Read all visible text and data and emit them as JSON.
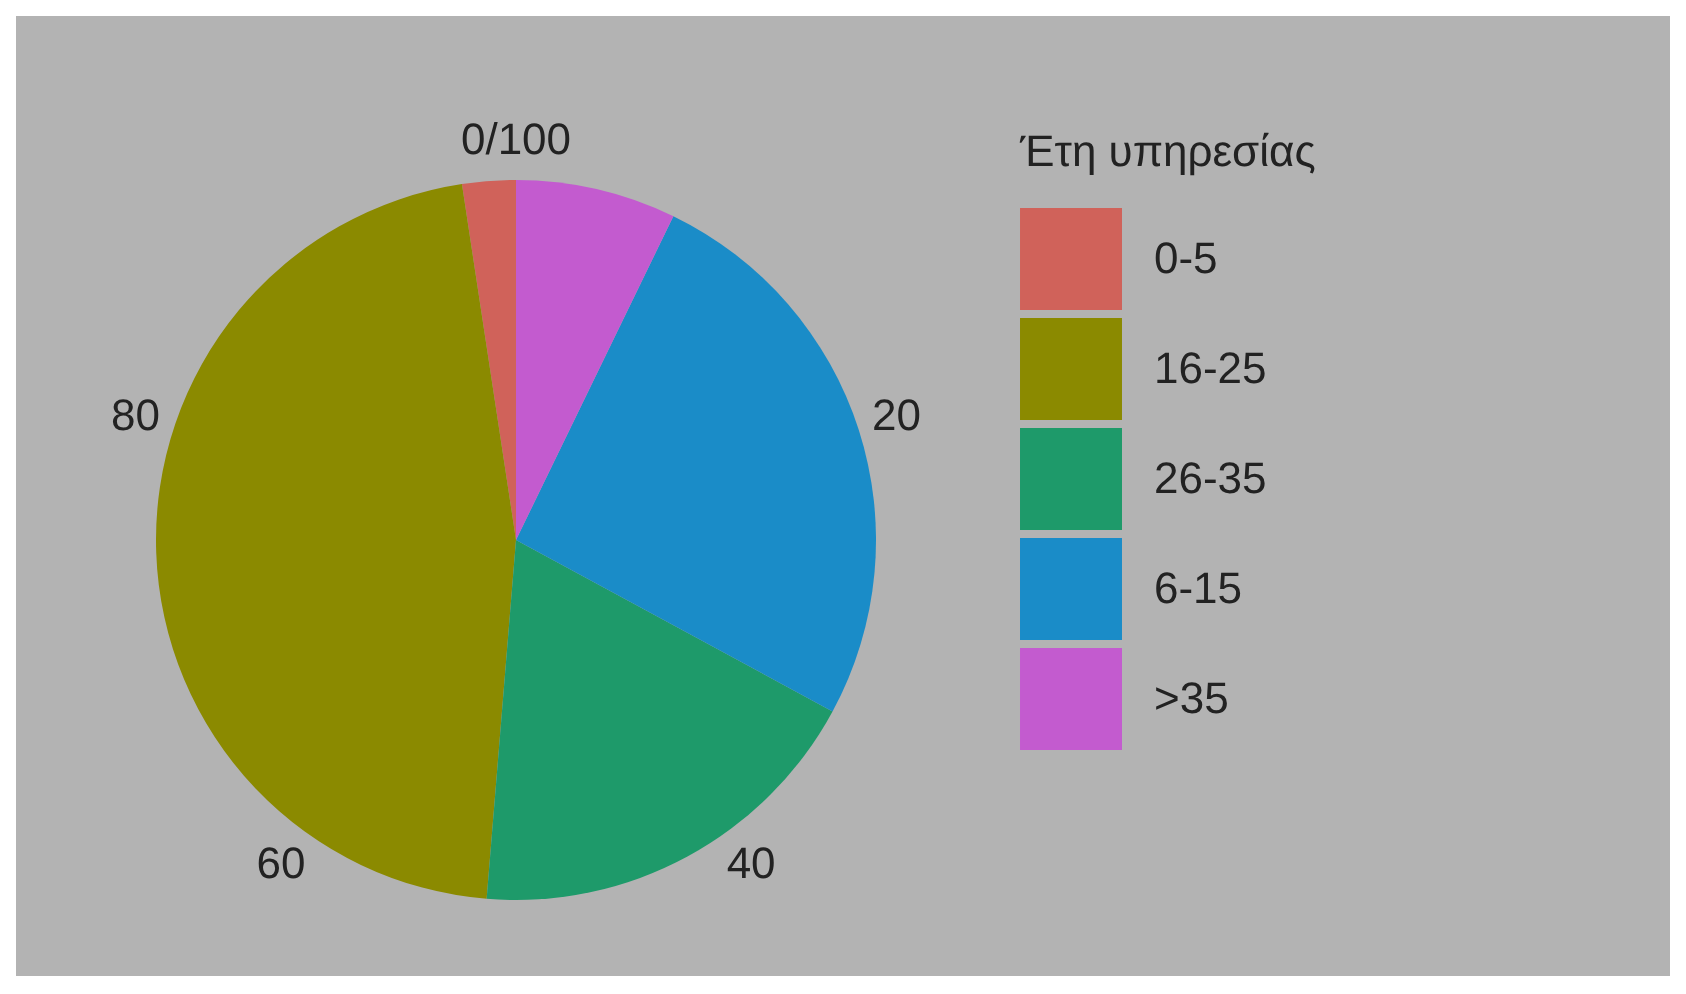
{
  "chart_data": {
    "type": "pie",
    "legend_title": "Έτη υπηρεσίας",
    "legend": "right",
    "categories": [
      "0-5",
      "16-25",
      "26-35",
      "6-15",
      ">35"
    ],
    "values": [
      2.4,
      46.3,
      18.4,
      25.7,
      7.2
    ],
    "colors": [
      "#d0625a",
      "#8b8a00",
      "#1e9a6a",
      "#1a8cc8",
      "#c35bcf"
    ],
    "annotations": [
      "0/100",
      "20",
      "40",
      "60",
      "80"
    ]
  }
}
